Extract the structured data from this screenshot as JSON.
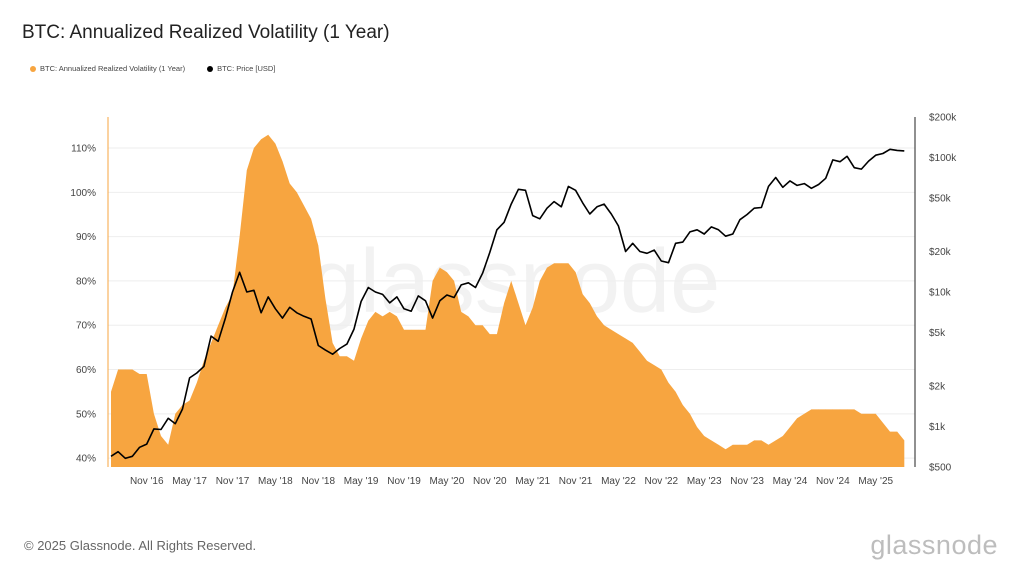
{
  "title": "BTC: Annualized Realized Volatility (1 Year)",
  "legend": [
    {
      "label": "BTC: Annualized Realized Volatility (1 Year)",
      "color": "#f7a540"
    },
    {
      "label": "BTC: Price [USD]",
      "color": "#000000"
    }
  ],
  "footer": "© 2025 Glassnode. All Rights Reserved.",
  "logo": "glassnode",
  "watermark": "glassnode",
  "chart_data": {
    "type": "area",
    "title": "BTC: Annualized Realized Volatility (1 Year)",
    "xlim": [
      "2016-06",
      "2025-09"
    ],
    "x_ticks": [
      "Nov '16",
      "May '17",
      "Nov '17",
      "May '18",
      "Nov '18",
      "May '19",
      "Nov '19",
      "May '20",
      "Nov '20",
      "May '21",
      "Nov '21",
      "May '22",
      "Nov '22",
      "May '23",
      "Nov '23",
      "May '24",
      "Nov '24",
      "May '25"
    ],
    "y_left": {
      "ticks": [
        "40%",
        "50%",
        "60%",
        "70%",
        "80%",
        "90%",
        "100%",
        "110%"
      ],
      "ylim": [
        38,
        117
      ],
      "unit": "%"
    },
    "y_right": {
      "scale": "log",
      "ticks": [
        "$500",
        "$1k",
        "$2k",
        "$5k",
        "$10k",
        "$20k",
        "$50k",
        "$100k",
        "$200k"
      ],
      "tick_values": [
        500,
        1000,
        2000,
        5000,
        10000,
        20000,
        50000,
        100000,
        200000
      ],
      "ylim": [
        500,
        200000
      ]
    },
    "grid": true,
    "legend_position": "top-left",
    "start_month": "2016-06",
    "series": [
      {
        "name": "BTC: Annualized Realized Volatility (1 Year)",
        "axis": "left",
        "color": "#f7a540",
        "type": "area",
        "values": [
          55,
          60,
          60,
          60,
          59,
          59,
          50,
          45,
          43,
          50,
          52,
          53,
          57,
          62,
          66,
          70,
          74,
          77,
          90,
          105,
          110,
          112,
          113,
          111,
          107,
          102,
          100,
          97,
          94,
          88,
          76,
          66,
          63,
          63,
          62,
          67,
          71,
          73,
          72,
          73,
          72,
          69,
          69,
          69,
          69,
          80,
          83,
          82,
          80,
          73,
          72,
          70,
          70,
          68,
          68,
          75,
          80,
          75,
          70,
          74,
          80,
          83,
          84,
          84,
          84,
          82,
          77,
          75,
          72,
          70,
          69,
          68,
          67,
          66,
          64,
          62,
          61,
          60,
          57,
          55,
          52,
          50,
          47,
          45,
          44,
          43,
          42,
          43,
          43,
          43,
          44,
          44,
          43,
          44,
          45,
          47,
          49,
          50,
          51,
          51,
          51,
          51,
          51,
          51,
          51,
          50,
          50,
          50,
          48,
          46,
          46,
          44
        ]
      },
      {
        "name": "BTC: Price [USD]",
        "axis": "right",
        "color": "#000000",
        "type": "line",
        "values": [
          600,
          650,
          580,
          600,
          700,
          740,
          960,
          950,
          1150,
          1050,
          1350,
          2300,
          2500,
          2800,
          4700,
          4300,
          6400,
          10000,
          14000,
          10000,
          10300,
          7000,
          9200,
          7500,
          6400,
          7700,
          7000,
          6600,
          6300,
          4000,
          3700,
          3450,
          3800,
          4100,
          5300,
          8500,
          10800,
          10000,
          9600,
          8300,
          9200,
          7500,
          7200,
          9350,
          8600,
          6400,
          8600,
          9500,
          9100,
          11300,
          11700,
          10800,
          13800,
          19700,
          29000,
          33000,
          45000,
          58000,
          57000,
          37000,
          35000,
          42000,
          47000,
          43000,
          61000,
          57000,
          46000,
          38000,
          43000,
          45000,
          38000,
          31000,
          20000,
          23000,
          20000,
          19400,
          20500,
          17000,
          16500,
          23000,
          23500,
          28000,
          29000,
          27000,
          30500,
          29000,
          26000,
          27000,
          34500,
          37700,
          42000,
          42500,
          61000,
          71000,
          60000,
          67000,
          62000,
          64000,
          59000,
          63000,
          70000,
          96000,
          93000,
          102000,
          84000,
          82000,
          94000,
          104000,
          107000,
          115000,
          113000,
          112000
        ]
      }
    ]
  }
}
